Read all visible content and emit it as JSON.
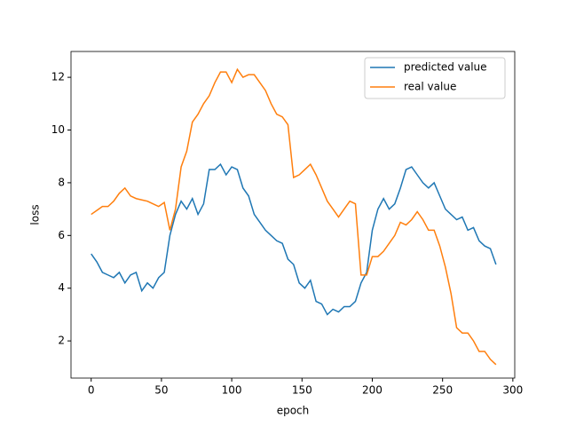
{
  "chart_data": {
    "type": "line",
    "xlabel": "epoch",
    "ylabel": "loss",
    "x": [
      0,
      4,
      8,
      12,
      16,
      20,
      24,
      28,
      32,
      36,
      40,
      44,
      48,
      52,
      56,
      60,
      64,
      68,
      72,
      76,
      80,
      84,
      88,
      92,
      96,
      100,
      104,
      108,
      112,
      116,
      120,
      124,
      128,
      132,
      136,
      140,
      144,
      148,
      152,
      156,
      160,
      164,
      168,
      172,
      176,
      180,
      184,
      188,
      192,
      196,
      200,
      204,
      208,
      212,
      216,
      220,
      224,
      228,
      232,
      236,
      240,
      244,
      248,
      252,
      256,
      260,
      264,
      268,
      272,
      276,
      280,
      284,
      288
    ],
    "series": [
      {
        "name": "predicted value",
        "color": "#1f77b4",
        "values": [
          5.3,
          5.0,
          4.6,
          4.5,
          4.4,
          4.6,
          4.2,
          4.5,
          4.6,
          3.9,
          4.2,
          4.0,
          4.4,
          4.6,
          6.0,
          6.8,
          7.3,
          7.0,
          7.4,
          6.8,
          7.2,
          8.5,
          8.5,
          8.7,
          8.3,
          8.6,
          8.5,
          7.8,
          7.5,
          6.8,
          6.5,
          6.2,
          6.0,
          5.8,
          5.7,
          5.1,
          4.9,
          4.2,
          4.0,
          4.3,
          3.5,
          3.4,
          3.0,
          3.2,
          3.1,
          3.3,
          3.3,
          3.5,
          4.2,
          4.6,
          6.2,
          7.0,
          7.4,
          7.0,
          7.2,
          7.8,
          8.5,
          8.6,
          8.3,
          8.0,
          7.8,
          8.0,
          7.5,
          7.0,
          6.8,
          6.6,
          6.7,
          6.2,
          6.3,
          5.8,
          5.6,
          5.5,
          4.9
        ]
      },
      {
        "name": "real value",
        "color": "#ff7f0e",
        "values": [
          6.8,
          6.95,
          7.1,
          7.1,
          7.3,
          7.6,
          7.8,
          7.5,
          7.4,
          7.35,
          7.3,
          7.2,
          7.1,
          7.25,
          6.2,
          7.0,
          8.6,
          9.2,
          10.3,
          10.6,
          11.0,
          11.3,
          11.8,
          12.2,
          12.2,
          11.8,
          12.3,
          12.0,
          12.1,
          12.1,
          11.8,
          11.5,
          11.0,
          10.6,
          10.5,
          10.2,
          8.2,
          8.3,
          8.5,
          8.7,
          8.3,
          7.8,
          7.3,
          7.0,
          6.7,
          7.0,
          7.3,
          7.2,
          4.5,
          4.5,
          5.2,
          5.2,
          5.4,
          5.7,
          6.0,
          6.5,
          6.4,
          6.6,
          6.9,
          6.6,
          6.2,
          6.2,
          5.6,
          4.8,
          3.8,
          2.5,
          2.3,
          2.3,
          2.0,
          1.6,
          1.6,
          1.3,
          1.1
        ]
      }
    ],
    "xlim": [
      -14.35,
      301.35
    ],
    "ylim": [
      0.59,
      12.98
    ],
    "xticks": [
      0,
      50,
      100,
      150,
      200,
      250,
      300
    ],
    "yticks": [
      2,
      4,
      6,
      8,
      10,
      12
    ],
    "legend": "upper right"
  }
}
